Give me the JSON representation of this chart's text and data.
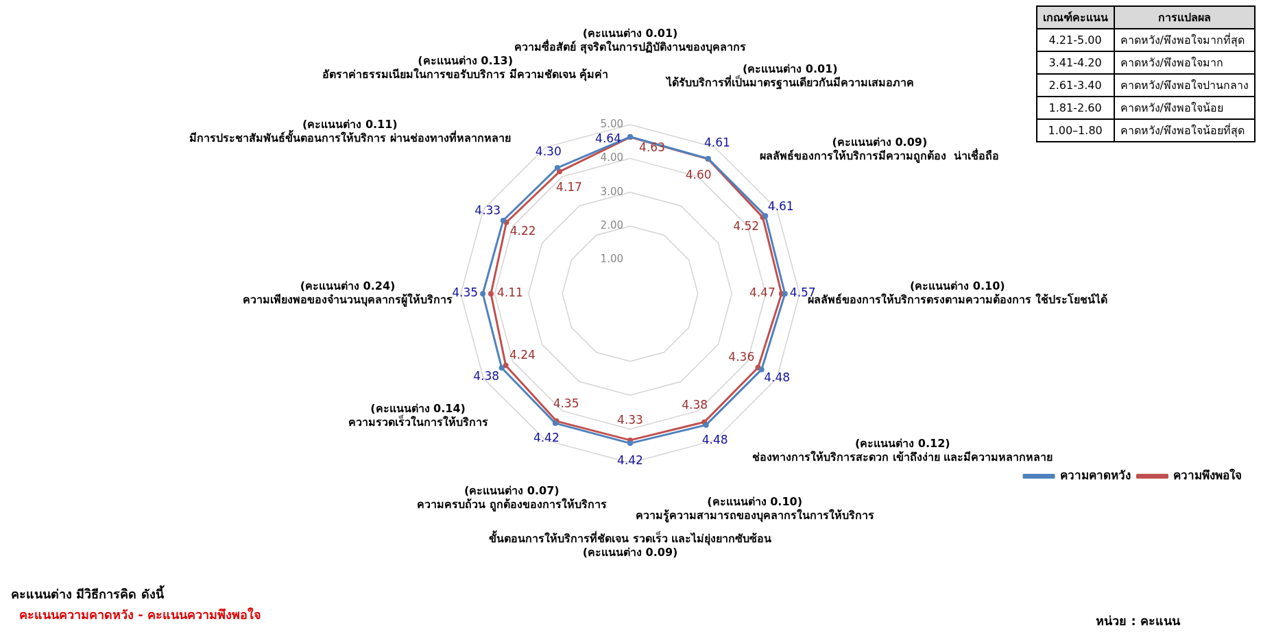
{
  "chart_data": {
    "type": "radar",
    "categories": [
      "(คะแนนต่าง 0.01)\nความซื่อสัตย์ สุจริตในการปฏิบัติงานของบุคลากร",
      "(คะแนนต่าง 0.01)\nได้รับบริการที่เป็นมาตรฐานเดียวกันมีความเสมอภาค",
      "(คะแนนต่าง 0.09)\nผลลัพธ์ของการให้บริการมีความถูกต้อง  น่าเชื่อถือ",
      "(คะแนนต่าง 0.10)\nผลลัพธ์ของการให้บริการตรงตามความต้องการ ใช้ประโยชน์ได้",
      "(คะแนนต่าง 0.12)\nช่องทางการให้บริการสะดวก เข้าถึงง่าย และมีความหลากหลาย",
      "(คะแนนต่าง 0.10)\nความรู้ความสามารถของบุคลากรในการให้บริการ",
      "ขั้นตอนการให้บริการที่ชัดเจน รวดเร็ว และไม่ยุ่งยากซับซ้อน\n(คะแนนต่าง 0.09)",
      "(คะแนนต่าง 0.07)\nความครบถ้วน ถูกต้องของการให้บริการ",
      "(คะแนนต่าง 0.14)\nความรวดเร็วในการให้บริการ",
      "(คะแนนต่าง 0.24)\nความเพียงพอของจำนวนบุคลากรผู้ให้บริการ",
      "(คะแนนต่าง 0.11)\nมีการประชาสัมพันธ์ขั้นตอนการให้บริการ ผ่านช่องทางที่หลากหลาย",
      "(คะแนนต่าง 0.13)\nอัตราค่าธรรมเนียมในการขอรับบริการ มีความชัดเจน คุ้มค่า"
    ],
    "series": [
      {
        "name": "ความคาดหวัง",
        "color": "#4f81bd",
        "values": [
          4.64,
          4.61,
          4.61,
          4.57,
          4.48,
          4.48,
          4.42,
          4.42,
          4.38,
          4.35,
          4.33,
          4.3
        ],
        "value_labels": [
          "4.64",
          "4.61",
          "4.61",
          "4.57",
          "4.48",
          "4.48",
          "4.42",
          "4.42",
          "4.38",
          "4.35",
          "4.33",
          "4.30"
        ]
      },
      {
        "name": "ความพึงพอใจ",
        "color": "#c0504d",
        "values": [
          4.63,
          4.6,
          4.52,
          4.47,
          4.36,
          4.38,
          4.33,
          4.35,
          4.24,
          4.11,
          4.22,
          4.17
        ],
        "value_labels": [
          "4.63",
          "4.60",
          "4.52",
          "4.47",
          "4.36",
          "4.38",
          "4.33",
          "4.35",
          "4.24",
          "4.11",
          "4.22",
          "4.17"
        ]
      }
    ],
    "ylim": [
      0,
      5
    ],
    "yticks": [
      {
        "value": 1,
        "label": "1.00"
      },
      {
        "value": 2,
        "label": "2.00"
      },
      {
        "value": 3,
        "label": "3.00"
      },
      {
        "value": 4,
        "label": "4.00"
      },
      {
        "value": 5,
        "label": "5.00"
      }
    ],
    "grid": true,
    "legend": "bottom right",
    "marker": "circle",
    "annotations": [
      "คะแนนต่าง มีวิธีการคิด ดังนี้",
      "คะแนนความคาดหวัง - คะแนนความพึงพอใจ",
      "หน่วย : คะแนน",
      "เกณฑ์คะแนน",
      "การแปลผล",
      "4.21-5.00",
      "คาดหวัง/พึงพอใจมากที่สุด",
      "3.41-4.20",
      "คาดหวัง/พึงพอใจมาก",
      "2.61-3.40",
      "คาดหวัง/พึงพอใจปานกลาง",
      "1.81-2.60",
      "คาดหวัง/พึงพอใจน้อย",
      "1.00–1.80",
      "คาดหวัง/พึงพอใจน้อยที่สุด"
    ]
  }
}
